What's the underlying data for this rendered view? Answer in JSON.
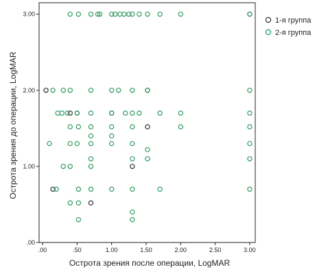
{
  "chart_data": {
    "type": "scatter",
    "xlabel": "Острота зрения после операции, LogMAR",
    "ylabel": "Острота зрения до операции, LogMAR",
    "xlim": [
      -0.05,
      3.08
    ],
    "ylim": [
      0,
      3.15
    ],
    "x_ticks": [
      0,
      0.5,
      1.0,
      1.5,
      2.0,
      2.5,
      3.0
    ],
    "x_tick_labels": [
      ".00",
      ".50",
      "1.00",
      "1.50",
      "2.00",
      "2.50",
      "3.00"
    ],
    "y_ticks": [
      0,
      1.0,
      2.0,
      3.0
    ],
    "y_tick_labels": [
      ".00",
      "1.00",
      "2.00",
      "3.00"
    ],
    "grid": false,
    "legend": "top-right",
    "series": [
      {
        "name": "1-я группа",
        "color": "#2b2f3a",
        "points": [
          [
            0.05,
            2.0
          ],
          [
            0.4,
            1.7
          ],
          [
            0.5,
            1.7
          ],
          [
            0.15,
            0.7
          ],
          [
            0.7,
            0.52
          ],
          [
            1.0,
            1.7
          ],
          [
            1.3,
            1.0
          ],
          [
            1.52,
            2.0
          ],
          [
            1.52,
            1.52
          ],
          [
            3.0,
            3.0
          ]
        ]
      },
      {
        "name": "2-я группа",
        "color": "#2e9a5e",
        "points": [
          [
            0.4,
            3.0
          ],
          [
            0.52,
            3.0
          ],
          [
            0.7,
            3.0
          ],
          [
            0.8,
            3.0
          ],
          [
            0.83,
            3.0
          ],
          [
            1.0,
            3.0
          ],
          [
            1.05,
            3.0
          ],
          [
            1.12,
            3.0
          ],
          [
            1.18,
            3.0
          ],
          [
            1.25,
            3.0
          ],
          [
            1.3,
            3.0
          ],
          [
            1.4,
            3.0
          ],
          [
            1.52,
            3.0
          ],
          [
            1.7,
            3.0
          ],
          [
            2.0,
            3.0
          ],
          [
            3.0,
            3.0
          ],
          [
            0.15,
            2.0
          ],
          [
            0.3,
            2.0
          ],
          [
            0.4,
            2.0
          ],
          [
            0.7,
            2.0
          ],
          [
            1.0,
            2.0
          ],
          [
            1.1,
            2.0
          ],
          [
            1.3,
            2.0
          ],
          [
            1.52,
            2.0
          ],
          [
            3.0,
            2.0
          ],
          [
            0.22,
            1.7
          ],
          [
            0.28,
            1.7
          ],
          [
            0.36,
            1.7
          ],
          [
            0.5,
            1.7
          ],
          [
            0.7,
            1.7
          ],
          [
            1.0,
            1.7
          ],
          [
            1.2,
            1.7
          ],
          [
            1.3,
            1.7
          ],
          [
            1.4,
            1.7
          ],
          [
            1.7,
            1.7
          ],
          [
            2.0,
            1.7
          ],
          [
            3.0,
            1.7
          ],
          [
            0.4,
            1.52
          ],
          [
            0.52,
            1.52
          ],
          [
            0.7,
            1.52
          ],
          [
            1.0,
            1.52
          ],
          [
            1.3,
            1.52
          ],
          [
            2.0,
            1.52
          ],
          [
            3.0,
            1.52
          ],
          [
            0.7,
            1.4
          ],
          [
            1.0,
            1.4
          ],
          [
            0.1,
            1.3
          ],
          [
            0.4,
            1.3
          ],
          [
            0.5,
            1.3
          ],
          [
            0.7,
            1.3
          ],
          [
            1.0,
            1.3
          ],
          [
            1.3,
            1.3
          ],
          [
            3.0,
            1.3
          ],
          [
            1.52,
            1.22
          ],
          [
            0.7,
            1.1
          ],
          [
            1.3,
            1.1
          ],
          [
            1.52,
            1.1
          ],
          [
            3.0,
            1.1
          ],
          [
            0.3,
            1.0
          ],
          [
            0.4,
            1.0
          ],
          [
            0.7,
            1.0
          ],
          [
            0.2,
            0.7
          ],
          [
            0.52,
            0.7
          ],
          [
            0.7,
            0.7
          ],
          [
            1.0,
            0.7
          ],
          [
            1.3,
            0.7
          ],
          [
            1.7,
            0.7
          ],
          [
            3.0,
            0.7
          ],
          [
            0.4,
            0.52
          ],
          [
            0.52,
            0.52
          ],
          [
            1.3,
            0.4
          ],
          [
            0.52,
            0.3
          ],
          [
            1.3,
            0.3
          ]
        ]
      }
    ]
  }
}
